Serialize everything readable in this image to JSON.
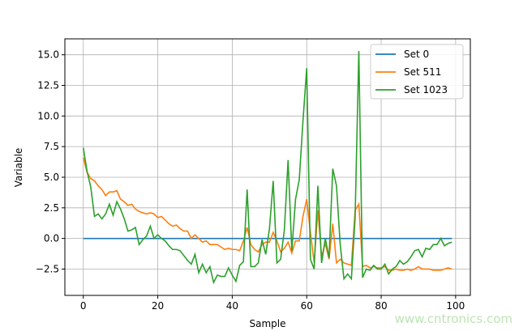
{
  "chart_data": {
    "type": "line",
    "xlabel": "Sample",
    "ylabel": "Variable",
    "xlim": [
      -4.95,
      103.95
    ],
    "ylim": [
      -4.65,
      16.3
    ],
    "xticks": [
      0,
      20,
      40,
      60,
      80,
      100
    ],
    "yticks": [
      -2.5,
      0.0,
      2.5,
      5.0,
      7.5,
      10.0,
      12.5,
      15.0
    ],
    "ytick_labels": [
      "−2.5",
      "0.0",
      "2.5",
      "5.0",
      "7.5",
      "10.0",
      "12.5",
      "15.0"
    ],
    "grid": true,
    "legend_position": "top-right",
    "series": [
      {
        "name": "Set 0",
        "color": "#1f77b4",
        "values": [
          0,
          0,
          0,
          0,
          0,
          0,
          0,
          0,
          0,
          0,
          0,
          0,
          0,
          0,
          0,
          0,
          0,
          0,
          0,
          0,
          0,
          0,
          0,
          0,
          0,
          0,
          0,
          0,
          0,
          0,
          0,
          0,
          0,
          0,
          0,
          0,
          0,
          0,
          0,
          0,
          0,
          0,
          0,
          0,
          0,
          0,
          0,
          0,
          0,
          0,
          0,
          0,
          0,
          0,
          0,
          0,
          0,
          0,
          0,
          0,
          0,
          0,
          0,
          0,
          0,
          0,
          0,
          0,
          0,
          0,
          0,
          0,
          0,
          0,
          0,
          0,
          0,
          0,
          0,
          0,
          0,
          0,
          0,
          0,
          0,
          0,
          0,
          0,
          0,
          0,
          0,
          0,
          0,
          0,
          0,
          0,
          0,
          0,
          0,
          0
        ]
      },
      {
        "name": "Set 511",
        "color": "#ff7f0e",
        "values": [
          6.6,
          5.4,
          4.9,
          4.7,
          4.3,
          4.0,
          3.5,
          3.8,
          3.8,
          3.9,
          3.2,
          3.0,
          2.7,
          2.8,
          2.4,
          2.2,
          2.1,
          2.0,
          2.1,
          2.0,
          1.7,
          1.8,
          1.5,
          1.2,
          1.0,
          1.1,
          0.8,
          0.6,
          0.6,
          0.0,
          0.3,
          0.0,
          -0.3,
          -0.2,
          -0.5,
          -0.5,
          -0.5,
          -0.7,
          -0.9,
          -0.8,
          -0.9,
          -0.9,
          -1.0,
          -0.2,
          0.9,
          -0.5,
          -0.9,
          -1.1,
          -0.5,
          -0.3,
          -0.3,
          0.5,
          -0.2,
          -1.1,
          -0.8,
          -0.3,
          -1.2,
          -0.2,
          -0.2,
          1.8,
          3.2,
          0.5,
          -2.0,
          2.3,
          -1.5,
          -0.4,
          -1.7,
          1.2,
          -2.0,
          -1.7,
          -2.0,
          -2.1,
          -2.2,
          2.3,
          2.8,
          -2.3,
          -2.2,
          -2.4,
          -2.3,
          -2.4,
          -2.4,
          -2.3,
          -2.6,
          -2.6,
          -2.5,
          -2.6,
          -2.6,
          -2.5,
          -2.6,
          -2.5,
          -2.3,
          -2.5,
          -2.5,
          -2.5,
          -2.6,
          -2.6,
          -2.6,
          -2.5,
          -2.4,
          -2.5
        ]
      },
      {
        "name": "Set 1023",
        "color": "#2ca02c",
        "values": [
          7.4,
          5.5,
          4.2,
          1.8,
          2.0,
          1.6,
          2.0,
          2.8,
          1.9,
          3.0,
          2.4,
          1.6,
          0.6,
          0.7,
          0.9,
          -0.5,
          -0.1,
          0.2,
          1.0,
          0.0,
          0.3,
          0.0,
          -0.2,
          -0.6,
          -0.9,
          -0.9,
          -1.0,
          -1.4,
          -1.8,
          -2.1,
          -1.3,
          -2.8,
          -2.1,
          -2.8,
          -2.3,
          -3.6,
          -3.0,
          -3.1,
          -3.1,
          -2.4,
          -3.0,
          -3.5,
          -2.2,
          -1.9,
          4.0,
          -2.3,
          -2.3,
          -2.0,
          -0.1,
          -1.3,
          0.8,
          4.7,
          -2.0,
          -1.7,
          0.7,
          6.4,
          -1.0,
          3.2,
          4.8,
          9.6,
          13.9,
          -1.7,
          -2.5,
          4.3,
          -2.0,
          0.0,
          -1.6,
          5.7,
          4.3,
          -0.5,
          -3.3,
          -2.9,
          -3.3,
          1.7,
          15.3,
          -3.2,
          -2.5,
          -2.6,
          -2.2,
          -2.5,
          -2.5,
          -2.1,
          -2.9,
          -2.5,
          -2.3,
          -1.8,
          -2.1,
          -1.9,
          -1.5,
          -1.0,
          -0.9,
          -1.5,
          -0.8,
          -0.9,
          -0.5,
          -0.5,
          0.0,
          -0.6,
          -0.4,
          -0.3
        ]
      }
    ]
  },
  "watermark": "www.cntronics.com"
}
